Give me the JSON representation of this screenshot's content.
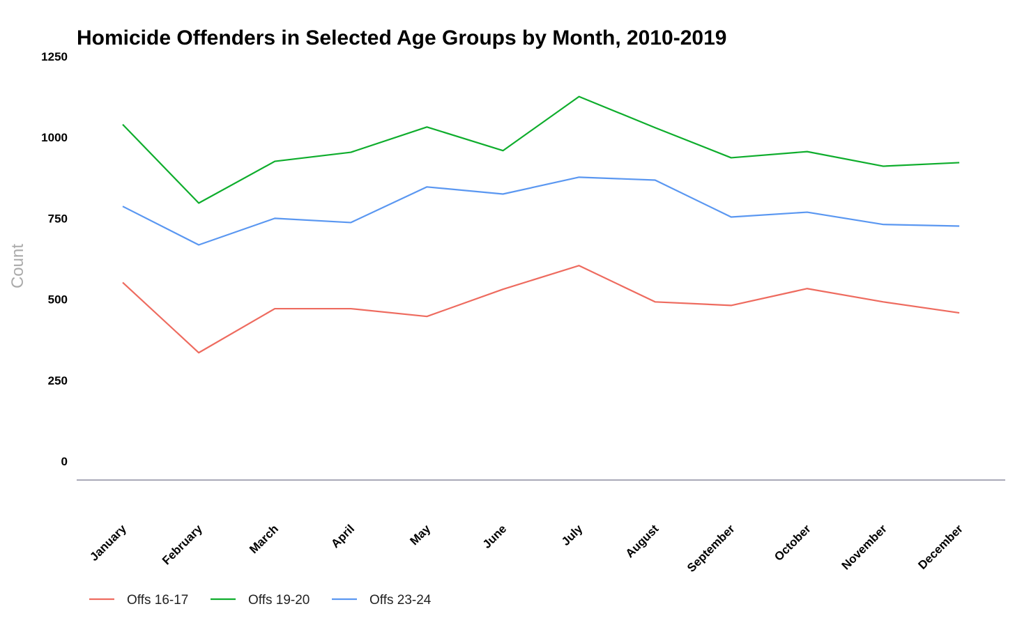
{
  "chart_data": {
    "type": "line",
    "title": "Homicide Offenders in Selected Age Groups by Month, 2010-2019",
    "xlabel": "",
    "ylabel": "Count",
    "ylim": [
      0,
      1250
    ],
    "yticks": [
      "0",
      "250",
      "500",
      "750",
      "1000",
      "1250"
    ],
    "grid": false,
    "legend_position": "bottom-left",
    "categories": [
      "January",
      "February",
      "March",
      "April",
      "May",
      "June",
      "July",
      "August",
      "September",
      "October",
      "November",
      "December"
    ],
    "series": [
      {
        "name": "Offs 16-17",
        "color": "#ee6b5f",
        "values": [
          608,
          391,
          527,
          527,
          503,
          587,
          660,
          548,
          537,
          589,
          548,
          514
        ]
      },
      {
        "name": "Offs 19-20",
        "color": "#0ead2c",
        "values": [
          1096,
          853,
          982,
          1010,
          1088,
          1015,
          1182,
          1086,
          993,
          1012,
          967,
          978
        ]
      },
      {
        "name": "Offs 23-24",
        "color": "#5a97f1",
        "values": [
          843,
          724,
          806,
          793,
          903,
          881,
          933,
          924,
          810,
          825,
          787,
          782
        ]
      }
    ]
  }
}
